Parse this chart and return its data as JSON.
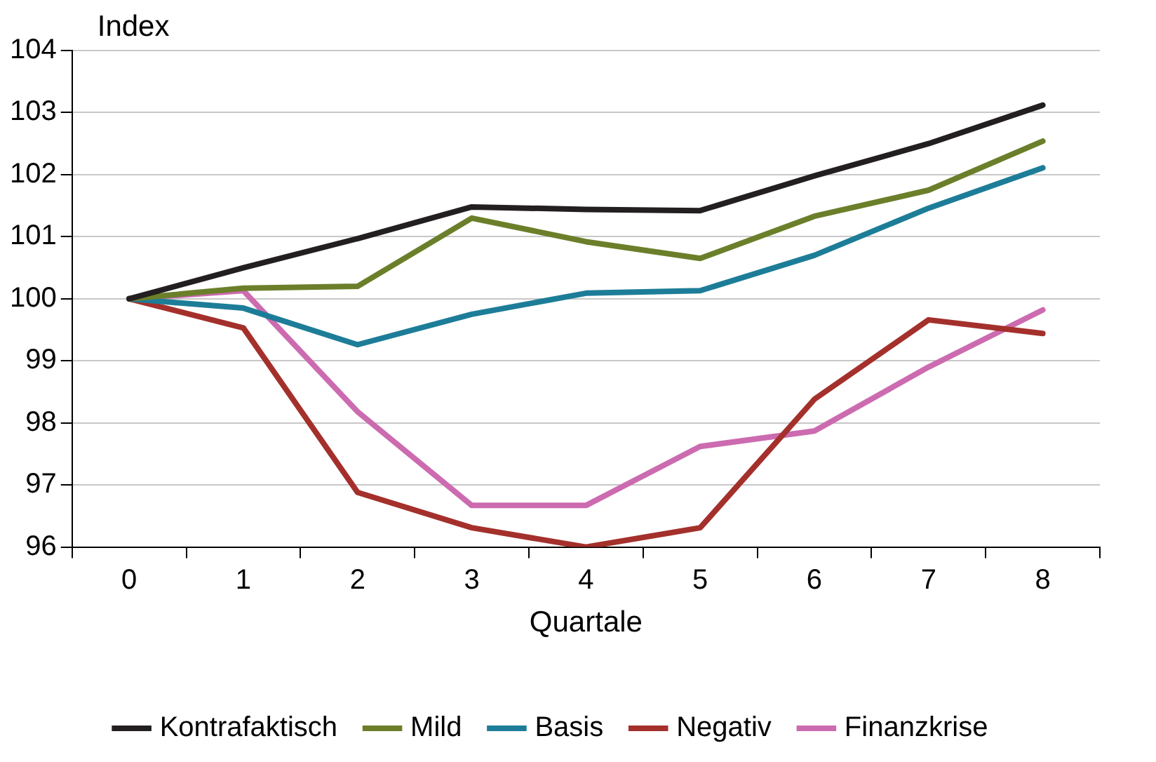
{
  "chart_data": {
    "type": "line",
    "ylabel": "Index",
    "xlabel": "Quartale",
    "categories": [
      "0",
      "1",
      "2",
      "3",
      "4",
      "5",
      "6",
      "7",
      "8"
    ],
    "series": [
      {
        "name": "Kontrafaktisch",
        "color": "#231f20",
        "values": [
          100,
          100.5,
          100.97,
          101.48,
          101.44,
          101.42,
          101.98,
          102.5,
          103.12
        ]
      },
      {
        "name": "Mild",
        "color": "#6b7f2a",
        "values": [
          100,
          100.17,
          100.2,
          101.3,
          100.92,
          100.65,
          101.33,
          101.75,
          102.54
        ]
      },
      {
        "name": "Basis",
        "color": "#1d7d98",
        "values": [
          100,
          99.85,
          99.26,
          99.75,
          100.09,
          100.13,
          100.7,
          101.46,
          102.11
        ]
      },
      {
        "name": "Negativ",
        "color": "#a4302c",
        "values": [
          100,
          99.53,
          96.88,
          96.31,
          96.0,
          96.31,
          98.38,
          99.66,
          99.44
        ]
      },
      {
        "name": "Finanzkrise",
        "color": "#cc6bb0",
        "values": [
          100,
          100.13,
          98.18,
          96.67,
          96.67,
          97.62,
          97.87,
          98.9,
          99.82
        ]
      }
    ],
    "ylim": [
      96,
      104
    ],
    "yticks": [
      96,
      97,
      98,
      99,
      100,
      101,
      102,
      103,
      104
    ],
    "grid": "y",
    "legend": "bottom",
    "marker": "none",
    "line_style": "solid"
  }
}
